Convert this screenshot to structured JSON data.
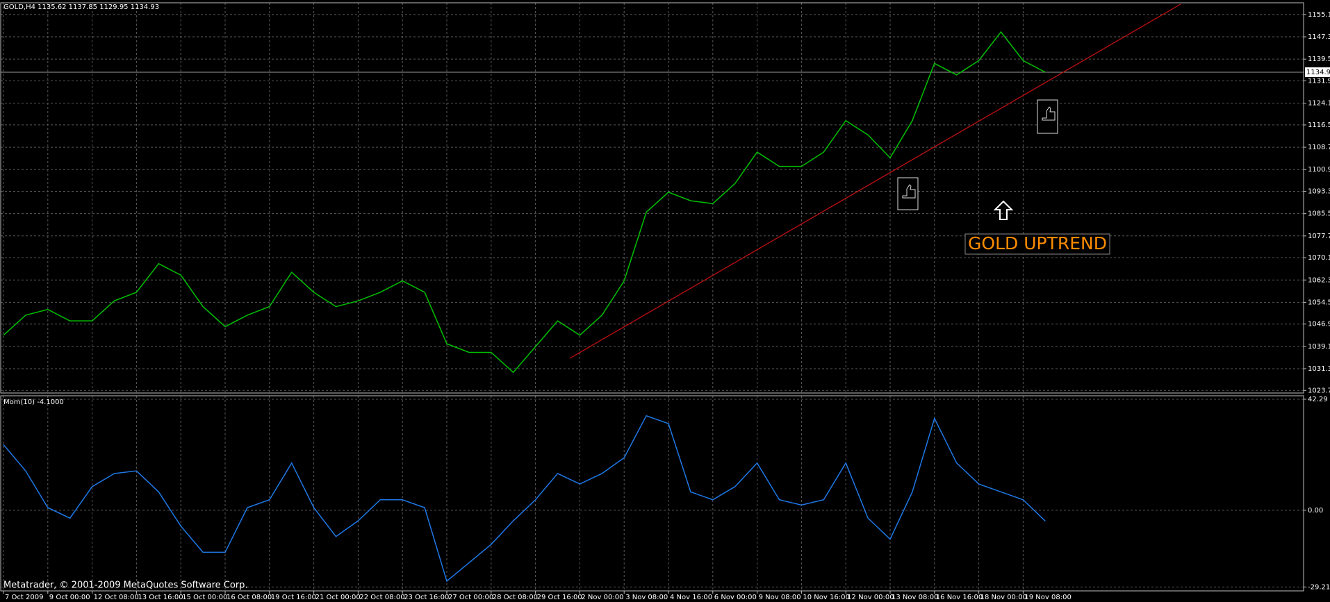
{
  "chart_data": [
    {
      "type": "line",
      "title": "GOLD,H4  1135.62 1137.85 1129.95 1134.93",
      "values": [
        1043,
        1050,
        1052,
        1048,
        1048,
        1055,
        1058,
        1068,
        1064,
        1053,
        1046,
        1050,
        1053,
        1065,
        1058,
        1053,
        1055,
        1058,
        1062,
        1058,
        1040,
        1037,
        1037,
        1030,
        1039,
        1048,
        1043,
        1050,
        1062,
        1086,
        1093,
        1090,
        1089,
        1096,
        1107,
        1102,
        1102,
        1107,
        1118,
        1113,
        1105,
        1118,
        1138,
        1134,
        1139,
        1149,
        1139,
        1134.93
      ],
      "color": "#00c000",
      "ylim": [
        1022.8,
        1159.2
      ],
      "yticks": [
        {
          "value": 1155.1,
          "label": "1155.10"
        },
        {
          "value": 1147.3,
          "label": "1147.30"
        },
        {
          "value": 1139.5,
          "label": "1139.50"
        },
        {
          "value": 1131.9,
          "label": "1131.90"
        },
        {
          "value": 1124.1,
          "label": "1124.10"
        },
        {
          "value": 1116.5,
          "label": "1116.50"
        },
        {
          "value": 1108.7,
          "label": "1108.70"
        },
        {
          "value": 1100.9,
          "label": "1100.90"
        },
        {
          "value": 1093.3,
          "label": "1093.30"
        },
        {
          "value": 1085.5,
          "label": "1085.50"
        },
        {
          "value": 1077.7,
          "label": "1077.70"
        },
        {
          "value": 1070.1,
          "label": "1070.10"
        },
        {
          "value": 1062.3,
          "label": "1062.30"
        },
        {
          "value": 1054.5,
          "label": "1054.50"
        },
        {
          "value": 1046.9,
          "label": "1046.90"
        },
        {
          "value": 1039.1,
          "label": "1039.10"
        },
        {
          "value": 1031.3,
          "label": "1031.30"
        },
        {
          "value": 1023.7,
          "label": "1023.70"
        }
      ],
      "current_value": 1134.93,
      "annotation": "GOLD UPTREND",
      "grid": true
    },
    {
      "type": "line",
      "title": "Mom(10) -4.1000",
      "categories": [
        "7 Oct 2009",
        null,
        "9 Oct 00:00",
        null,
        "12 Oct 08:00",
        null,
        "13 Oct 16:00",
        null,
        "15 Oct 00:00",
        null,
        "16 Oct 08:00",
        null,
        "19 Oct 16:00",
        null,
        "21 Oct 00:00",
        null,
        "22 Oct 08:00",
        null,
        "23 Oct 16:00",
        null,
        "27 Oct 00:00",
        null,
        "28 Oct 08:00",
        null,
        "29 Oct 16:00",
        null,
        "2 Nov 00:00",
        null,
        "3 Nov 08:00",
        null,
        "4 Nov 16:00",
        null,
        "6 Nov 00:00",
        null,
        "9 Nov 08:00",
        null,
        "10 Nov 16:00",
        null,
        "12 Nov 00:00",
        null,
        "13 Nov 08:00",
        null,
        "16 Nov 16:00",
        null,
        "18 Nov 00:00",
        null,
        "19 Nov 08:00",
        null
      ],
      "values": [
        25,
        15,
        1,
        -3,
        9,
        14,
        15,
        7,
        -6,
        -16,
        -16,
        1,
        4,
        18,
        1,
        -10,
        -4,
        4,
        4,
        1,
        -27,
        -20,
        -13,
        -4,
        4,
        14,
        10,
        14,
        20,
        36,
        33,
        7,
        4,
        9,
        18,
        4,
        2,
        4,
        18,
        -3,
        -11,
        7,
        35,
        18,
        10,
        7,
        4,
        -4.1
      ],
      "color": "#1e78e6",
      "ylim": [
        -30.7,
        43.6
      ],
      "yticks": [
        42.29,
        {
          "value": 0,
          "label": "0.00"
        },
        -29.21
      ],
      "grid": true
    }
  ],
  "footer": "Metatrader, © 2001-2009 MetaQuotes Software Corp."
}
